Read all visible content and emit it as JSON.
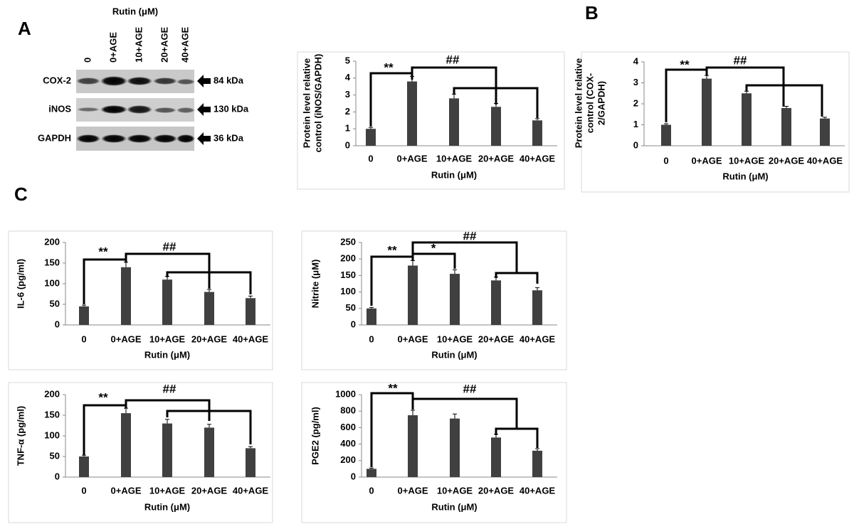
{
  "panel_labels": [
    "A",
    "B",
    "C"
  ],
  "blot": {
    "header": "Rutin (μM)",
    "lanes": [
      "0",
      "0+AGE",
      "10+AGE",
      "20+AGE",
      "40+AGE"
    ],
    "rows": [
      {
        "protein": "COX-2",
        "size": "84 kDa"
      },
      {
        "protein": "iNOS",
        "size": "130 kDa"
      },
      {
        "protein": "GAPDH",
        "size": "36 kDa"
      }
    ]
  },
  "chart_data": [
    {
      "type": "bar",
      "ylabel": [
        "Protein level relative",
        "control (iNOS/GAPDH)"
      ],
      "xlabel": "Rutin (μM)",
      "categories": [
        "0",
        "0+AGE",
        "10+AGE",
        "20+AGE",
        "40+AGE"
      ],
      "values": [
        1.0,
        3.8,
        2.8,
        2.3,
        1.5
      ],
      "errors": [
        0.08,
        0.3,
        0.25,
        0.2,
        0.1
      ],
      "color": "#404040",
      "ylim": [
        0,
        5
      ],
      "yticks": [
        0,
        1,
        2,
        3,
        4,
        5
      ],
      "annotations": [
        "**",
        "##"
      ]
    },
    {
      "type": "bar",
      "ylabel": [
        "Protein level relative",
        "control (COX-",
        "2/GAPDH)"
      ],
      "xlabel": "Rutin (μM)",
      "categories": [
        "0",
        "0+AGE",
        "10+AGE",
        "20+AGE",
        "40+AGE"
      ],
      "values": [
        1.0,
        3.2,
        2.5,
        1.8,
        1.3
      ],
      "errors": [
        0.05,
        0.15,
        0.1,
        0.08,
        0.06
      ],
      "color": "#404040",
      "ylim": [
        0,
        4
      ],
      "yticks": [
        0,
        1,
        2,
        3,
        4
      ],
      "annotations": [
        "**",
        "##"
      ]
    },
    {
      "type": "bar",
      "ylabel": [
        "IL-6 (pg/ml)"
      ],
      "xlabel": "Rutin (μM)",
      "categories": [
        "0",
        "0+AGE",
        "10+AGE",
        "20+AGE",
        "40+AGE"
      ],
      "values": [
        45,
        140,
        110,
        80,
        65
      ],
      "errors": [
        3,
        12,
        8,
        6,
        5
      ],
      "color": "#404040",
      "ylim": [
        0,
        200
      ],
      "yticks": [
        0,
        50,
        100,
        150,
        200
      ],
      "annotations": [
        "**",
        "##"
      ]
    },
    {
      "type": "bar",
      "ylabel": [
        "Nitrite (μM)"
      ],
      "xlabel": "Rutin (μM)",
      "categories": [
        "0",
        "0+AGE",
        "10+AGE",
        "20+AGE",
        "40+AGE"
      ],
      "values": [
        50,
        180,
        155,
        135,
        105
      ],
      "errors": [
        3,
        15,
        12,
        10,
        8
      ],
      "color": "#404040",
      "ylim": [
        0,
        250
      ],
      "yticks": [
        0,
        50,
        100,
        150,
        200,
        250
      ],
      "annotations": [
        "**",
        "*",
        "##"
      ]
    },
    {
      "type": "bar",
      "ylabel": [
        "TNF-α (pg/ml)"
      ],
      "xlabel": "Rutin (μM)",
      "categories": [
        "0",
        "0+AGE",
        "10+AGE",
        "20+AGE",
        "40+AGE"
      ],
      "values": [
        50,
        155,
        130,
        120,
        70
      ],
      "errors": [
        3,
        12,
        10,
        8,
        4
      ],
      "color": "#404040",
      "ylim": [
        0,
        200
      ],
      "yticks": [
        0,
        50,
        100,
        150,
        200
      ],
      "annotations": [
        "**",
        "##"
      ]
    },
    {
      "type": "bar",
      "ylabel": [
        "PGE2 (pg/ml)"
      ],
      "xlabel": "Rutin (μM)",
      "categories": [
        "0",
        "0+AGE",
        "10+AGE",
        "20+AGE",
        "40+AGE"
      ],
      "values": [
        100,
        750,
        710,
        480,
        320
      ],
      "errors": [
        10,
        60,
        55,
        40,
        25
      ],
      "color": "#404040",
      "ylim": [
        0,
        1000
      ],
      "yticks": [
        0,
        200,
        400,
        600,
        800,
        1000
      ],
      "annotations": [
        "**",
        "##"
      ]
    }
  ]
}
